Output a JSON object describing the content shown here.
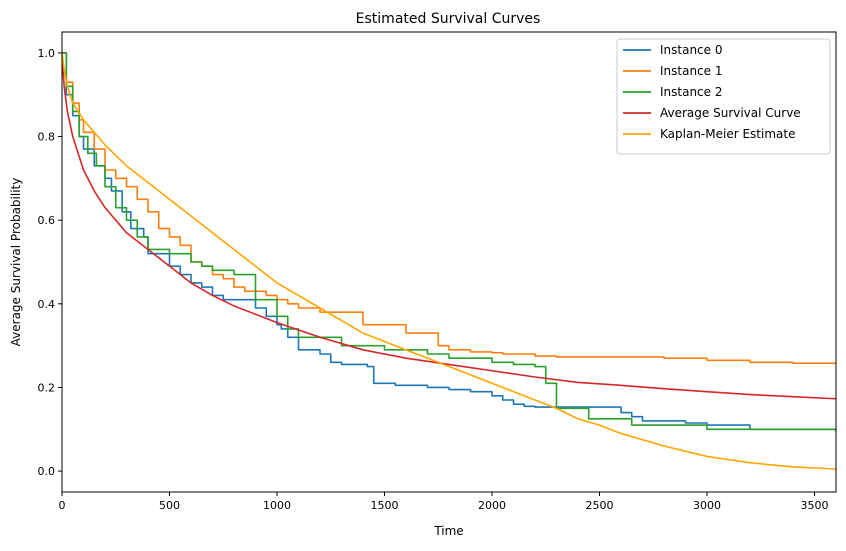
{
  "chart_data": {
    "type": "line",
    "title": "Estimated Survival Curves",
    "xlabel": "Time",
    "ylabel": "Average Survival Probability",
    "xlim": [
      0,
      3600
    ],
    "ylim": [
      -0.05,
      1.05
    ],
    "xticks": [
      0,
      500,
      1000,
      1500,
      2000,
      2500,
      3000,
      3500
    ],
    "yticks": [
      0.0,
      0.2,
      0.4,
      0.6,
      0.8,
      1.0
    ],
    "xtick_labels": [
      "0",
      "500",
      "1000",
      "1500",
      "2000",
      "2500",
      "3000",
      "3500"
    ],
    "ytick_labels": [
      "0.0",
      "0.2",
      "0.4",
      "0.6",
      "0.8",
      "1.0"
    ],
    "grid": false,
    "legend_position": "top-right",
    "series": [
      {
        "name": "Instance 0",
        "color": "#1f77b4",
        "step": true,
        "x": [
          0,
          20,
          50,
          80,
          100,
          150,
          200,
          230,
          280,
          320,
          380,
          400,
          500,
          550,
          600,
          650,
          700,
          750,
          900,
          950,
          1000,
          1020,
          1050,
          1100,
          1200,
          1250,
          1300,
          1420,
          1450,
          1550,
          1700,
          1800,
          1900,
          2000,
          2050,
          2100,
          2150,
          2200,
          2600,
          2650,
          2700,
          2900,
          3000,
          3200,
          3600
        ],
        "y": [
          1.0,
          0.9,
          0.85,
          0.8,
          0.77,
          0.73,
          0.7,
          0.67,
          0.62,
          0.58,
          0.56,
          0.52,
          0.49,
          0.47,
          0.45,
          0.44,
          0.42,
          0.41,
          0.39,
          0.37,
          0.35,
          0.34,
          0.32,
          0.29,
          0.28,
          0.26,
          0.255,
          0.25,
          0.21,
          0.205,
          0.2,
          0.195,
          0.19,
          0.18,
          0.17,
          0.16,
          0.155,
          0.153,
          0.14,
          0.13,
          0.12,
          0.115,
          0.11,
          0.1,
          0.097
        ]
      },
      {
        "name": "Instance 1",
        "color": "#ff7f0e",
        "step": true,
        "x": [
          0,
          20,
          50,
          80,
          100,
          150,
          200,
          250,
          300,
          350,
          400,
          450,
          500,
          550,
          600,
          650,
          700,
          750,
          800,
          850,
          950,
          1000,
          1050,
          1100,
          1200,
          1400,
          1600,
          1750,
          1800,
          1900,
          2000,
          2050,
          2200,
          2300,
          2800,
          3000,
          3200,
          3400,
          3600
        ],
        "y": [
          1.0,
          0.93,
          0.88,
          0.84,
          0.81,
          0.77,
          0.72,
          0.7,
          0.68,
          0.65,
          0.62,
          0.58,
          0.56,
          0.54,
          0.5,
          0.49,
          0.47,
          0.46,
          0.44,
          0.43,
          0.42,
          0.41,
          0.4,
          0.39,
          0.38,
          0.35,
          0.33,
          0.3,
          0.29,
          0.285,
          0.283,
          0.28,
          0.275,
          0.273,
          0.27,
          0.265,
          0.26,
          0.258,
          0.256
        ]
      },
      {
        "name": "Instance 2",
        "color": "#2ca02c",
        "step": true,
        "x": [
          0,
          20,
          50,
          80,
          120,
          160,
          200,
          250,
          300,
          350,
          400,
          500,
          600,
          650,
          700,
          800,
          900,
          1000,
          1050,
          1100,
          1300,
          1500,
          1700,
          1800,
          2000,
          2100,
          2200,
          2250,
          2300,
          2450,
          2650,
          3000,
          3600
        ],
        "y": [
          1.0,
          0.92,
          0.86,
          0.8,
          0.76,
          0.73,
          0.68,
          0.63,
          0.6,
          0.56,
          0.53,
          0.52,
          0.5,
          0.49,
          0.48,
          0.47,
          0.41,
          0.37,
          0.34,
          0.32,
          0.3,
          0.29,
          0.28,
          0.27,
          0.26,
          0.255,
          0.25,
          0.21,
          0.15,
          0.125,
          0.11,
          0.1,
          0.095
        ]
      },
      {
        "name": "Average Survival Curve",
        "color": "#d62728",
        "step": false,
        "x": [
          0,
          10,
          25,
          50,
          75,
          100,
          150,
          200,
          250,
          300,
          400,
          500,
          600,
          700,
          800,
          900,
          1000,
          1200,
          1400,
          1600,
          1800,
          2000,
          2200,
          2400,
          2600,
          2800,
          3000,
          3200,
          3400,
          3600
        ],
        "y": [
          1.0,
          0.92,
          0.86,
          0.8,
          0.76,
          0.72,
          0.67,
          0.63,
          0.6,
          0.57,
          0.53,
          0.49,
          0.45,
          0.42,
          0.395,
          0.375,
          0.355,
          0.32,
          0.29,
          0.27,
          0.255,
          0.24,
          0.225,
          0.212,
          0.205,
          0.197,
          0.19,
          0.183,
          0.178,
          0.173
        ]
      },
      {
        "name": "Kaplan-Meier Estimate",
        "color": "#ffa500",
        "step": false,
        "x": [
          0,
          10,
          25,
          50,
          100,
          150,
          200,
          300,
          400,
          500,
          600,
          700,
          800,
          900,
          1000,
          1100,
          1200,
          1300,
          1400,
          1500,
          1600,
          1700,
          1800,
          1900,
          2000,
          2100,
          2200,
          2300,
          2400,
          2500,
          2600,
          2800,
          3000,
          3200,
          3400,
          3600
        ],
        "y": [
          1.0,
          0.96,
          0.92,
          0.88,
          0.84,
          0.81,
          0.78,
          0.73,
          0.69,
          0.65,
          0.61,
          0.57,
          0.53,
          0.49,
          0.45,
          0.42,
          0.39,
          0.36,
          0.33,
          0.31,
          0.29,
          0.27,
          0.25,
          0.23,
          0.21,
          0.19,
          0.17,
          0.15,
          0.125,
          0.11,
          0.09,
          0.06,
          0.035,
          0.02,
          0.01,
          0.005
        ]
      }
    ]
  }
}
